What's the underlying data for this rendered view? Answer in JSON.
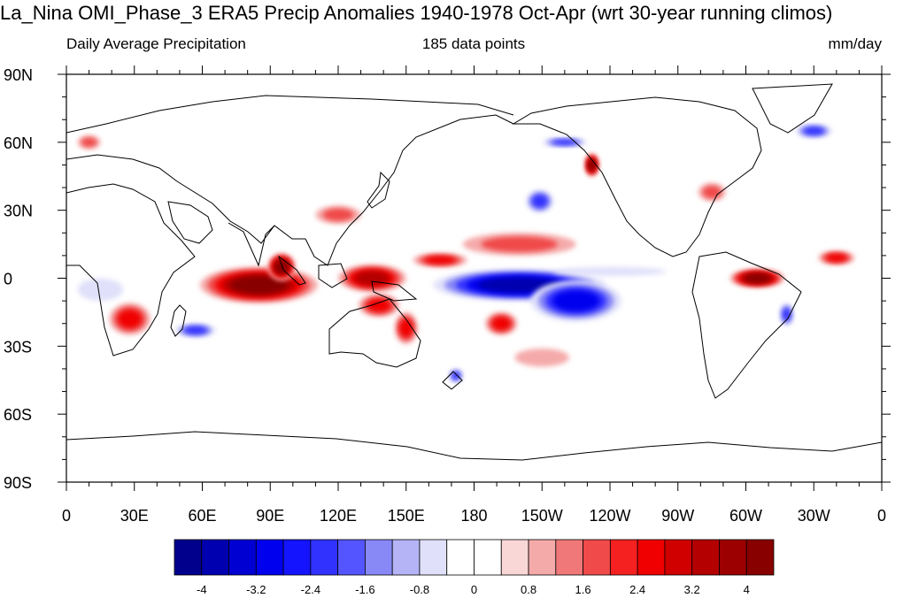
{
  "header": {
    "title": "La_Nina OMI_Phase_3 ERA5 Precip Anomalies 1940-1978 Oct-Apr (wrt 30-year running climos)",
    "left_subtitle": "Daily Average Precipitation",
    "center_subtitle": "185 data points",
    "right_subtitle": "mm/day"
  },
  "map": {
    "projection": "cylindrical-equidistant",
    "lon_range": [
      0,
      360
    ],
    "lat_range": [
      -90,
      90
    ],
    "lat_ticks": [
      {
        "lat": 90,
        "label": "90N"
      },
      {
        "lat": 60,
        "label": "60N"
      },
      {
        "lat": 30,
        "label": "30N"
      },
      {
        "lat": 0,
        "label": "0"
      },
      {
        "lat": -30,
        "label": "30S"
      },
      {
        "lat": -60,
        "label": "60S"
      },
      {
        "lat": -90,
        "label": "90S"
      }
    ],
    "lon_ticks": [
      {
        "lon": 0,
        "label": "0"
      },
      {
        "lon": 30,
        "label": "30E"
      },
      {
        "lon": 60,
        "label": "60E"
      },
      {
        "lon": 90,
        "label": "90E"
      },
      {
        "lon": 120,
        "label": "120E"
      },
      {
        "lon": 150,
        "label": "150E"
      },
      {
        "lon": 180,
        "label": "180"
      },
      {
        "lon": 210,
        "label": "150W"
      },
      {
        "lon": 240,
        "label": "120W"
      },
      {
        "lon": 270,
        "label": "90W"
      },
      {
        "lon": 300,
        "label": "60W"
      },
      {
        "lon": 330,
        "label": "30W"
      },
      {
        "lon": 360,
        "label": "0"
      }
    ]
  },
  "colorbar": {
    "colors": [
      "#00008c",
      "#0000b0",
      "#0000d2",
      "#0000ee",
      "#1414ff",
      "#3232ff",
      "#5555ff",
      "#8888f6",
      "#b4b4f6",
      "#e0e0fa",
      "#ffffff",
      "#ffffff",
      "#fad7d7",
      "#f5aaaa",
      "#f07878",
      "#f04a4a",
      "#f52020",
      "#f00000",
      "#d00000",
      "#b40000",
      "#9c0000",
      "#880000"
    ],
    "labels": [
      {
        "index": 1,
        "text": "-4"
      },
      {
        "index": 3,
        "text": "-3.2"
      },
      {
        "index": 5,
        "text": "-2.4"
      },
      {
        "index": 7,
        "text": "-1.6"
      },
      {
        "index": 9,
        "text": "-0.8"
      },
      {
        "index": 11,
        "text": "0"
      },
      {
        "index": 13,
        "text": "0.8"
      },
      {
        "index": 15,
        "text": "1.6"
      },
      {
        "index": 17,
        "text": "2.4"
      },
      {
        "index": 19,
        "text": "3.2"
      },
      {
        "index": 21,
        "text": "4"
      }
    ]
  },
  "anomaly_regions": [
    {
      "name": "central-pacific-dry",
      "lon": 200,
      "lat": -3,
      "rx": 38,
      "ry": 7,
      "level": -4.2
    },
    {
      "name": "pacific-dry-tongue",
      "lon": 225,
      "lat": -10,
      "rx": 20,
      "ry": 9,
      "level": -3.2
    },
    {
      "name": "east-pacific-dry-band",
      "lon": 240,
      "lat": 3,
      "rx": 25,
      "ry": 2,
      "level": -1.2
    },
    {
      "name": "north-pacific-dry",
      "lon": 209,
      "lat": 34,
      "rx": 6,
      "ry": 5,
      "level": -2.4
    },
    {
      "name": "gulf-alaska-dry",
      "lon": 220,
      "lat": 60,
      "rx": 10,
      "ry": 2,
      "level": -2.4
    },
    {
      "name": "south-atlantic-dry",
      "lon": 318,
      "lat": -16,
      "rx": 3,
      "ry": 5,
      "level": -2.4
    },
    {
      "name": "madagascar-dry",
      "lon": 57,
      "lat": -23,
      "rx": 9,
      "ry": 3,
      "level": -2.4
    },
    {
      "name": "southern-africa-dry",
      "lon": 15,
      "lat": -5,
      "rx": 10,
      "ry": 5,
      "level": -1.2
    },
    {
      "name": "greenland-dry",
      "lon": 330,
      "lat": 65,
      "rx": 8,
      "ry": 3,
      "level": -2.4
    },
    {
      "name": "new-zealand-dry",
      "lon": 172,
      "lat": -43,
      "rx": 3,
      "ry": 3,
      "level": -2.4
    },
    {
      "name": "indian-ocean-wet",
      "lon": 85,
      "lat": -3,
      "rx": 26,
      "ry": 8,
      "level": 4.2
    },
    {
      "name": "sumatra-wet",
      "lon": 95,
      "lat": 5,
      "rx": 6,
      "ry": 6,
      "level": 3.6
    },
    {
      "name": "maritime-continent-wet",
      "lon": 135,
      "lat": 0,
      "rx": 15,
      "ry": 6,
      "level": 3.2
    },
    {
      "name": "west-pacific-wet",
      "lon": 165,
      "lat": 8,
      "rx": 12,
      "ry": 3,
      "level": 2.6
    },
    {
      "name": "northern-australia-wet",
      "lon": 138,
      "lat": -12,
      "rx": 9,
      "ry": 5,
      "level": 2.6
    },
    {
      "name": "east-australia-wet",
      "lon": 150,
      "lat": -22,
      "rx": 5,
      "ry": 7,
      "level": 2.0
    },
    {
      "name": "spcz-wet",
      "lon": 192,
      "lat": -20,
      "rx": 7,
      "ry": 5,
      "level": 2.6
    },
    {
      "name": "north-pacific-wet",
      "lon": 200,
      "lat": 15,
      "rx": 25,
      "ry": 5,
      "level": 1.6
    },
    {
      "name": "alaska-wet",
      "lon": 232,
      "lat": 50,
      "rx": 3,
      "ry": 5,
      "level": 4.2
    },
    {
      "name": "amazon-wet",
      "lon": 305,
      "lat": 0,
      "rx": 12,
      "ry": 4,
      "level": 3.6
    },
    {
      "name": "atlantic-itcz-wet",
      "lon": 340,
      "lat": 9,
      "rx": 8,
      "ry": 3,
      "level": 2.4
    },
    {
      "name": "southern-africa-wet",
      "lon": 28,
      "lat": -18,
      "rx": 9,
      "ry": 7,
      "level": 2.4
    },
    {
      "name": "japan-china-wet",
      "lon": 120,
      "lat": 28,
      "rx": 10,
      "ry": 4,
      "level": 1.6
    },
    {
      "name": "us-east-coast-wet",
      "lon": 285,
      "lat": 38,
      "rx": 6,
      "ry": 4,
      "level": 1.6
    },
    {
      "name": "subtropical-pacific-wet",
      "lon": 210,
      "lat": -35,
      "rx": 12,
      "ry": 4,
      "level": 0.8
    },
    {
      "name": "europe-wet",
      "lon": 10,
      "lat": 60,
      "rx": 5,
      "ry": 3,
      "level": 1.6
    }
  ]
}
